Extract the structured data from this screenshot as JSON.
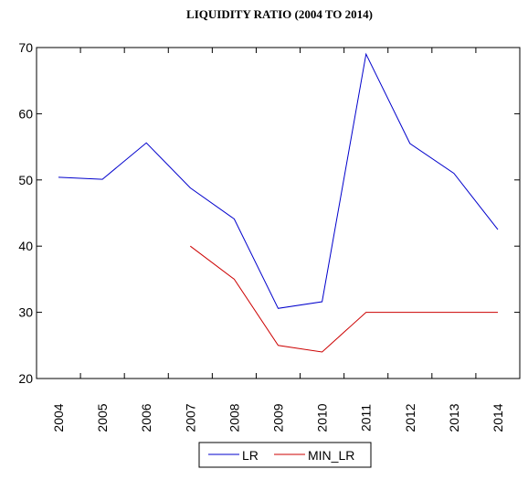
{
  "chart_data": {
    "type": "line",
    "title": "LIQUIDITY RATIO (2004 TO 2014)",
    "xlabel": "",
    "ylabel": "",
    "categories": [
      "2004",
      "2005",
      "2006",
      "2007",
      "2008",
      "2009",
      "2010",
      "2011",
      "2012",
      "2013",
      "2014"
    ],
    "ylim": [
      20,
      70
    ],
    "yticks": [
      20,
      30,
      40,
      50,
      60,
      70
    ],
    "grid": false,
    "legend_position": "bottom",
    "series": [
      {
        "name": "LR",
        "color": "#0000cc",
        "values": [
          50.4,
          50.1,
          55.6,
          48.8,
          44.1,
          30.6,
          31.6,
          69.0,
          55.5,
          51.0,
          42.5
        ]
      },
      {
        "name": "MIN_LR",
        "color": "#cc0000",
        "values": [
          null,
          null,
          null,
          40.0,
          35.0,
          25.0,
          24.0,
          30.0,
          30.0,
          30.0,
          30.0
        ]
      }
    ]
  }
}
